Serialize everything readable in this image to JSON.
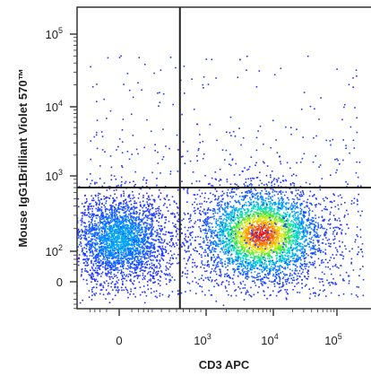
{
  "chart_data": {
    "type": "scatter",
    "plot_style": "density dot plot (pseudocolor: blue low to red high)",
    "xlabel": "CD3 APC",
    "ylabel": "Mouse IgG1Brilliant Violet 570™",
    "x_scale": "biexponential",
    "y_scale": "biexponential",
    "x_ticks": [
      {
        "value": 0,
        "label": "0"
      },
      {
        "value": 1000,
        "label": "10",
        "exp": "3"
      },
      {
        "value": 10000,
        "label": "10",
        "exp": "4"
      },
      {
        "value": 100000,
        "label": "10",
        "exp": "5"
      }
    ],
    "y_ticks": [
      {
        "value": 0,
        "label": "0"
      },
      {
        "value": 100,
        "label": "10",
        "exp": "2"
      },
      {
        "value": 1000,
        "label": "10",
        "exp": "3"
      },
      {
        "value": 10000,
        "label": "10",
        "exp": "4"
      },
      {
        "value": 100000,
        "label": "10",
        "exp": "5"
      }
    ],
    "quadrant_gate": {
      "x": 550,
      "y": 700
    },
    "populations": [
      {
        "name": "",
        "center_x": 0,
        "center_y": 150,
        "relative_density": 0.55
      },
      {
        "name": "",
        "center_x": 6500,
        "center_y": 170,
        "relative_density": 1.0
      }
    ],
    "grid": false,
    "legend": "none"
  }
}
